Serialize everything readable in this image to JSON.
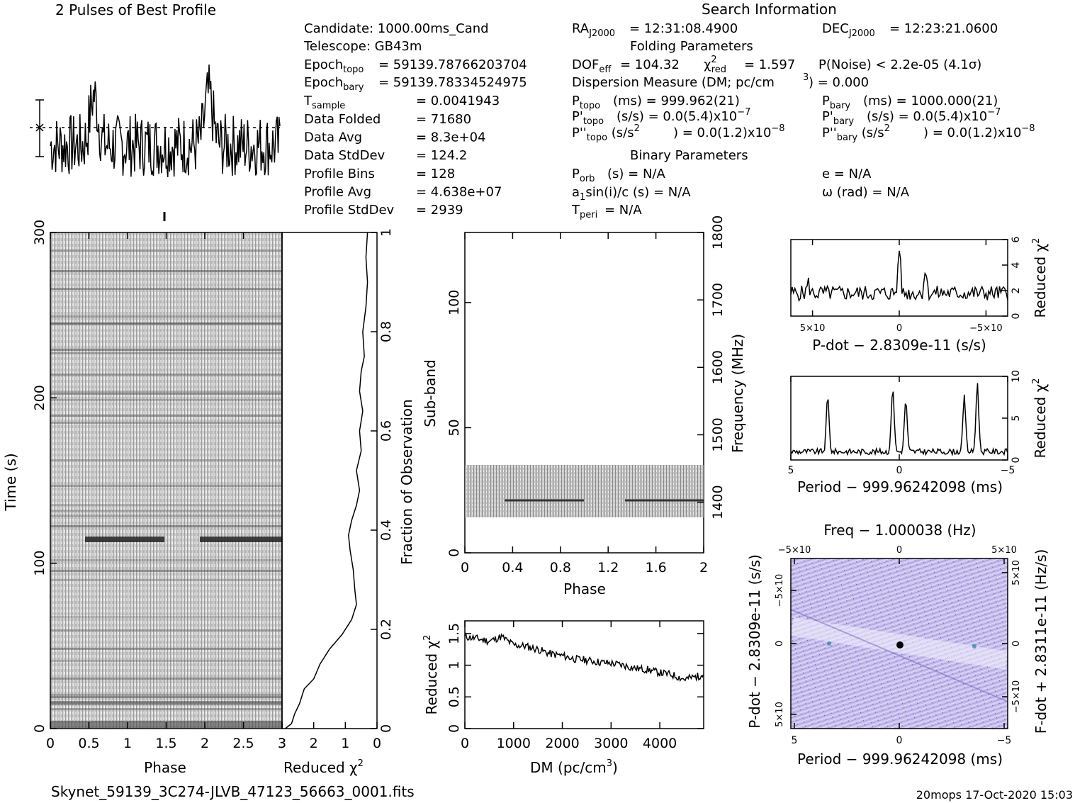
{
  "footer": {
    "filename": "Skynet_59139_3C274-JLVB_47123_56663_0001.fits",
    "stamp": "20mops 17-Oct-2020 15:03"
  },
  "profile": {
    "title": "2 Pulses of Best Profile"
  },
  "candidate_info": {
    "candidate": "Candidate:  1000.00ms_Cand",
    "telescope": "Telescope:  GB43m",
    "epoch_topo": "= 59139.78766203704",
    "epoch_bary": "= 59139.78334524975",
    "rows": [
      {
        "label": "Data Folded",
        "value": "=   71680"
      },
      {
        "label": "Data Avg",
        "value": "=   8.3e+04"
      },
      {
        "label": "Data StdDev",
        "value": "=   124.2"
      },
      {
        "label": "Profile Bins",
        "value": "=   128"
      },
      {
        "label": "Profile Avg",
        "value": "=   4.638e+07"
      },
      {
        "label": "Profile StdDev",
        "value": "=   2939"
      }
    ],
    "tsample_value": "=   0.0041943"
  },
  "search_info": {
    "title": "Search Information",
    "ra": "= 12:31:08.4900",
    "dec": "= 12:23:21.0600",
    "folding_title": "Folding Parameters",
    "dof": "= 104.32",
    "chi2red": "= 1.597",
    "pnoise": "P(Noise) < 2.2e-05   (4.1σ)",
    "dm": "Dispersion Measure (DM; pc/cm",
    "dm_end": ") = 0.000",
    "ptopo": "(ms)  =  999.962(21)",
    "pbary": "(ms)  =   1000.000(21)",
    "pdot_topo": "(s/s) = 0.0(5.4)x10",
    "pdot_bary": "(s/s) = 0.0(5.4)x10",
    "pddot_topo": ") = 0.0(1.2)x10",
    "pddot_bary": ") = 0.0(1.2)x10",
    "binary_title": "Binary Parameters",
    "porb": "(s) = N/A",
    "ecc": "e = N/A",
    "a1": "a",
    "a1_end": "sin(i)/c (s) = N/A",
    "omega": "ω (rad) = N/A",
    "tperi": "= N/A"
  },
  "chart_data": [
    {
      "type": "line",
      "name": "pulse-profile",
      "title": "2 Pulses of Best Profile",
      "x": "phase 0-2 (two pulses)",
      "xlim": [
        0,
        2
      ]
    },
    {
      "type": "heatmap",
      "name": "time-phase",
      "xlabel": "Phase",
      "ylabel": "Time (s)",
      "xlim": [
        0,
        3
      ],
      "ylim": [
        0,
        300
      ],
      "x_ticks": [
        "0",
        "0.5",
        "1",
        "1.5",
        "2",
        "2.5",
        "3"
      ],
      "y_ticks": [
        "0",
        "100",
        "200",
        "300"
      ]
    },
    {
      "type": "line",
      "name": "fraction-reduced-chi2",
      "xlabel": "Reduced χ",
      "ylabel": "Fraction of Observation",
      "xlim": [
        3,
        0
      ],
      "ylim": [
        0,
        1
      ],
      "x_ticks": [
        "3",
        "2",
        "1",
        "0"
      ],
      "y_ticks": [
        "0",
        "0.2",
        "0.4",
        "0.6",
        "0.8",
        "1"
      ],
      "points": [
        [
          0.3,
          1.0
        ],
        [
          0.35,
          0.95
        ],
        [
          0.3,
          0.9
        ],
        [
          0.35,
          0.85
        ],
        [
          0.45,
          0.8
        ],
        [
          0.4,
          0.75
        ],
        [
          0.5,
          0.72
        ],
        [
          0.55,
          0.68
        ],
        [
          0.45,
          0.64
        ],
        [
          0.55,
          0.6
        ],
        [
          0.5,
          0.56
        ],
        [
          0.65,
          0.52
        ],
        [
          0.55,
          0.48
        ],
        [
          0.65,
          0.45
        ],
        [
          0.8,
          0.42
        ],
        [
          0.9,
          0.39
        ],
        [
          0.85,
          0.36
        ],
        [
          0.75,
          0.32
        ],
        [
          0.7,
          0.28
        ],
        [
          0.65,
          0.25
        ],
        [
          0.8,
          0.22
        ],
        [
          1.1,
          0.19
        ],
        [
          1.5,
          0.16
        ],
        [
          1.8,
          0.13
        ],
        [
          2.0,
          0.1
        ],
        [
          2.3,
          0.08
        ],
        [
          2.45,
          0.05
        ],
        [
          2.6,
          0.03
        ],
        [
          2.7,
          0.01
        ],
        [
          2.9,
          0.0
        ]
      ]
    },
    {
      "type": "heatmap",
      "name": "subband-phase",
      "xlabel": "Phase",
      "ylabel": "Sub-band",
      "y2label": "Frequency (MHz)",
      "xlim": [
        0,
        2
      ],
      "ylim": [
        0,
        128
      ],
      "y2lim": [
        1325,
        1800
      ],
      "x_ticks": [
        "0",
        "0.4",
        "0.8",
        "1.2",
        "1.6",
        "2"
      ],
      "y_ticks": [
        "0",
        "50",
        "100"
      ],
      "y2_ticks": [
        "1400",
        "1500",
        "1600",
        "1700",
        "1800"
      ],
      "active_band": [
        14,
        35
      ]
    },
    {
      "type": "line",
      "name": "dm-chi2",
      "xlabel": "DM (pc/cm",
      "ylabel": "Reduced χ",
      "xlim": [
        0,
        4900
      ],
      "ylim": [
        0,
        1.7
      ],
      "x_ticks": [
        "0",
        "1000",
        "2000",
        "3000",
        "4000"
      ],
      "y_ticks": [
        "0",
        "0.5",
        "1",
        "1.5"
      ],
      "points": [
        [
          0,
          1.45
        ],
        [
          250,
          1.42
        ],
        [
          500,
          1.38
        ],
        [
          750,
          1.45
        ],
        [
          1000,
          1.32
        ],
        [
          1250,
          1.3
        ],
        [
          1500,
          1.25
        ],
        [
          1750,
          1.18
        ],
        [
          2000,
          1.15
        ],
        [
          2250,
          1.1
        ],
        [
          2500,
          1.08
        ],
        [
          2750,
          1.05
        ],
        [
          3000,
          1.03
        ],
        [
          3250,
          1.0
        ],
        [
          3500,
          0.95
        ],
        [
          3750,
          0.93
        ],
        [
          4000,
          0.88
        ],
        [
          4250,
          0.85
        ],
        [
          4500,
          0.78
        ],
        [
          4750,
          0.82
        ],
        [
          4900,
          0.85
        ]
      ]
    },
    {
      "type": "line",
      "name": "pdot-chi2",
      "xlabel": "P-dot − 2.8309e-11 (s/s)",
      "ylabel": "Reduced χ",
      "ylim": [
        0,
        6
      ],
      "x_ticks": [
        "5×10",
        "0",
        "−5×10"
      ],
      "y_ticks": [
        "0",
        "2",
        "4",
        "6"
      ],
      "peaks": [
        [
          0.5,
          5.6
        ],
        [
          0.62,
          3.8
        ],
        [
          0.08,
          2.6
        ]
      ]
    },
    {
      "type": "line",
      "name": "period-chi2",
      "xlabel": "Period − 999.96242098 (ms)",
      "ylabel": "Reduced χ",
      "xlim": [
        5,
        -5
      ],
      "ylim": [
        0,
        10
      ],
      "x_ticks": [
        "5",
        "0",
        "−5"
      ],
      "y_ticks": [
        "0",
        "5",
        "10"
      ],
      "peaks": [
        [
          3.3,
          7.5
        ],
        [
          0.3,
          8.8
        ],
        [
          -0.3,
          7.2
        ],
        [
          -3.0,
          7.5
        ],
        [
          -3.6,
          9.2
        ]
      ]
    },
    {
      "type": "heatmap",
      "name": "period-pdot",
      "title": "Freq − 1.000038 (Hz)",
      "xlabel": "Period − 999.96242098 (ms)",
      "ylabel": "P-dot − 2.8309e-11 (s/s)",
      "y2label": "F-dot + 2.8311e-11 (Hz/s)",
      "x_ticks": [
        "5",
        "0",
        "−5"
      ],
      "x2_ticks": [
        "−5×10",
        "0",
        "5×10"
      ],
      "y_ticks": [
        "5×10",
        "0",
        "−5×10"
      ],
      "y2_ticks": [
        "−5×10",
        "0",
        "5×10"
      ]
    }
  ]
}
